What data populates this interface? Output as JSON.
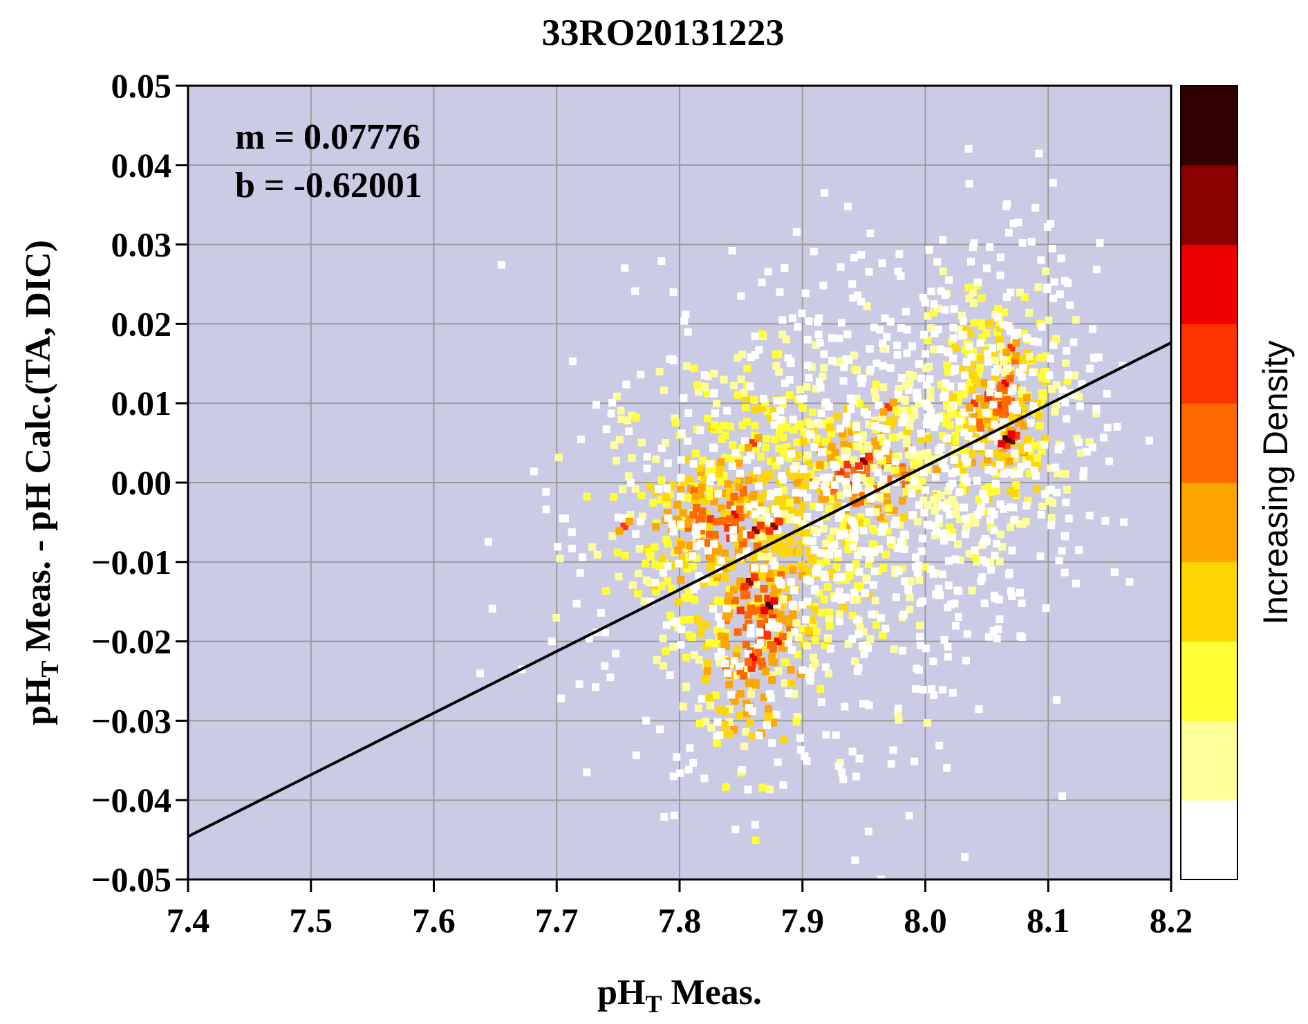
{
  "chart_data": {
    "type": "scatter",
    "title": "33RO20131223",
    "xlabel": {
      "prefix": "pH",
      "subscript": "T",
      "suffix": " Meas."
    },
    "ylabel": {
      "prefix": "pH",
      "subscript": "T",
      "suffix": " Meas. - pH Calc.(TA, DIC)"
    },
    "xlim": [
      7.4,
      8.2
    ],
    "ylim": [
      -0.05,
      0.05
    ],
    "x_ticks": [
      7.4,
      7.5,
      7.6,
      7.7,
      7.8,
      7.9,
      8.0,
      8.1,
      8.2
    ],
    "x_tick_labels": [
      "7.4",
      "7.5",
      "7.6",
      "7.7",
      "7.8",
      "7.9",
      "8.0",
      "8.1",
      "8.2"
    ],
    "y_ticks": [
      0.05,
      0.04,
      0.03,
      0.02,
      0.01,
      0.0,
      -0.01,
      -0.02,
      -0.03,
      -0.04,
      -0.05
    ],
    "y_tick_labels": [
      "0.05",
      "0.04",
      "0.03",
      "0.02",
      "0.01",
      "0.00",
      "−0.01",
      "−0.02",
      "−0.03",
      "−0.04",
      "−0.05"
    ],
    "grid": true,
    "plot_background": "#cbcbe6",
    "annotations": [
      "m = 0.07776",
      "b = -0.62001"
    ],
    "fit_line": {
      "slope": 0.07776,
      "intercept": -0.62001
    },
    "colorbar": {
      "label": "Increasing Density",
      "colors": [
        "#ffffff",
        "#ffff99",
        "#ffff33",
        "#ffd700",
        "#ffa500",
        "#ff6a00",
        "#ff3300",
        "#ee0000",
        "#8b0000",
        "#330000"
      ]
    },
    "density_clusters": [
      {
        "x": 7.87,
        "y": -0.006,
        "sx": 0.07,
        "sy": 0.012,
        "n": 700,
        "level": 3
      },
      {
        "x": 7.86,
        "y": -0.018,
        "sx": 0.025,
        "sy": 0.008,
        "n": 160,
        "level": 5
      },
      {
        "x": 7.83,
        "y": -0.005,
        "sx": 0.03,
        "sy": 0.004,
        "n": 110,
        "level": 5
      },
      {
        "x": 7.95,
        "y": 0.001,
        "sx": 0.03,
        "sy": 0.004,
        "n": 120,
        "level": 5
      },
      {
        "x": 8.055,
        "y": 0.008,
        "sx": 0.035,
        "sy": 0.009,
        "n": 330,
        "level": 3
      },
      {
        "x": 8.06,
        "y": 0.01,
        "sx": 0.015,
        "sy": 0.005,
        "n": 80,
        "level": 5
      },
      {
        "x": 7.97,
        "y": 0.005,
        "sx": 0.05,
        "sy": 0.012,
        "n": 260,
        "level": 1
      },
      {
        "x": 7.9,
        "y": -0.01,
        "sx": 0.09,
        "sy": 0.015,
        "n": 420,
        "level": 0
      },
      {
        "x": 8.07,
        "y": 0.012,
        "sx": 0.04,
        "sy": 0.012,
        "n": 180,
        "level": 0
      }
    ],
    "density_peaks": [
      {
        "x": 7.873,
        "y": -0.0155,
        "level": 9
      },
      {
        "x": 7.857,
        "y": -0.0125,
        "level": 8
      },
      {
        "x": 7.877,
        "y": -0.0055,
        "level": 8
      },
      {
        "x": 7.862,
        "y": -0.006,
        "level": 8
      },
      {
        "x": 7.95,
        "y": 0.0027,
        "level": 8
      },
      {
        "x": 8.07,
        "y": 0.0053,
        "level": 8
      },
      {
        "x": 8.066,
        "y": 0.0055,
        "level": 9
      },
      {
        "x": 7.845,
        "y": -0.004,
        "level": 7
      },
      {
        "x": 7.88,
        "y": -0.02,
        "level": 7
      },
      {
        "x": 7.86,
        "y": -0.022,
        "level": 7
      },
      {
        "x": 8.065,
        "y": 0.0125,
        "level": 7
      },
      {
        "x": 7.86,
        "y": 0.005,
        "level": 6
      },
      {
        "x": 7.97,
        "y": 0.0095,
        "level": 6
      },
      {
        "x": 8.04,
        "y": 0.01,
        "level": 6
      },
      {
        "x": 7.755,
        "y": -0.0055,
        "level": 6
      },
      {
        "x": 8.07,
        "y": 0.017,
        "level": 6
      }
    ],
    "outliers": [
      {
        "x": 7.918,
        "y": 0.0365
      },
      {
        "x": 8.068,
        "y": 0.0315
      },
      {
        "x": 7.795,
        "y": 0.024
      },
      {
        "x": 7.85,
        "y": 0.0235
      },
      {
        "x": 7.696,
        "y": -0.02
      },
      {
        "x": 7.795,
        "y": -0.037
      },
      {
        "x": 7.932,
        "y": -0.0365
      },
      {
        "x": 8.005,
        "y": -0.026
      },
      {
        "x": 7.98,
        "y": 0.026
      },
      {
        "x": 8.05,
        "y": 0.027
      },
      {
        "x": 7.705,
        "y": -0.0045
      },
      {
        "x": 8.125,
        "y": -0.0085
      }
    ]
  }
}
